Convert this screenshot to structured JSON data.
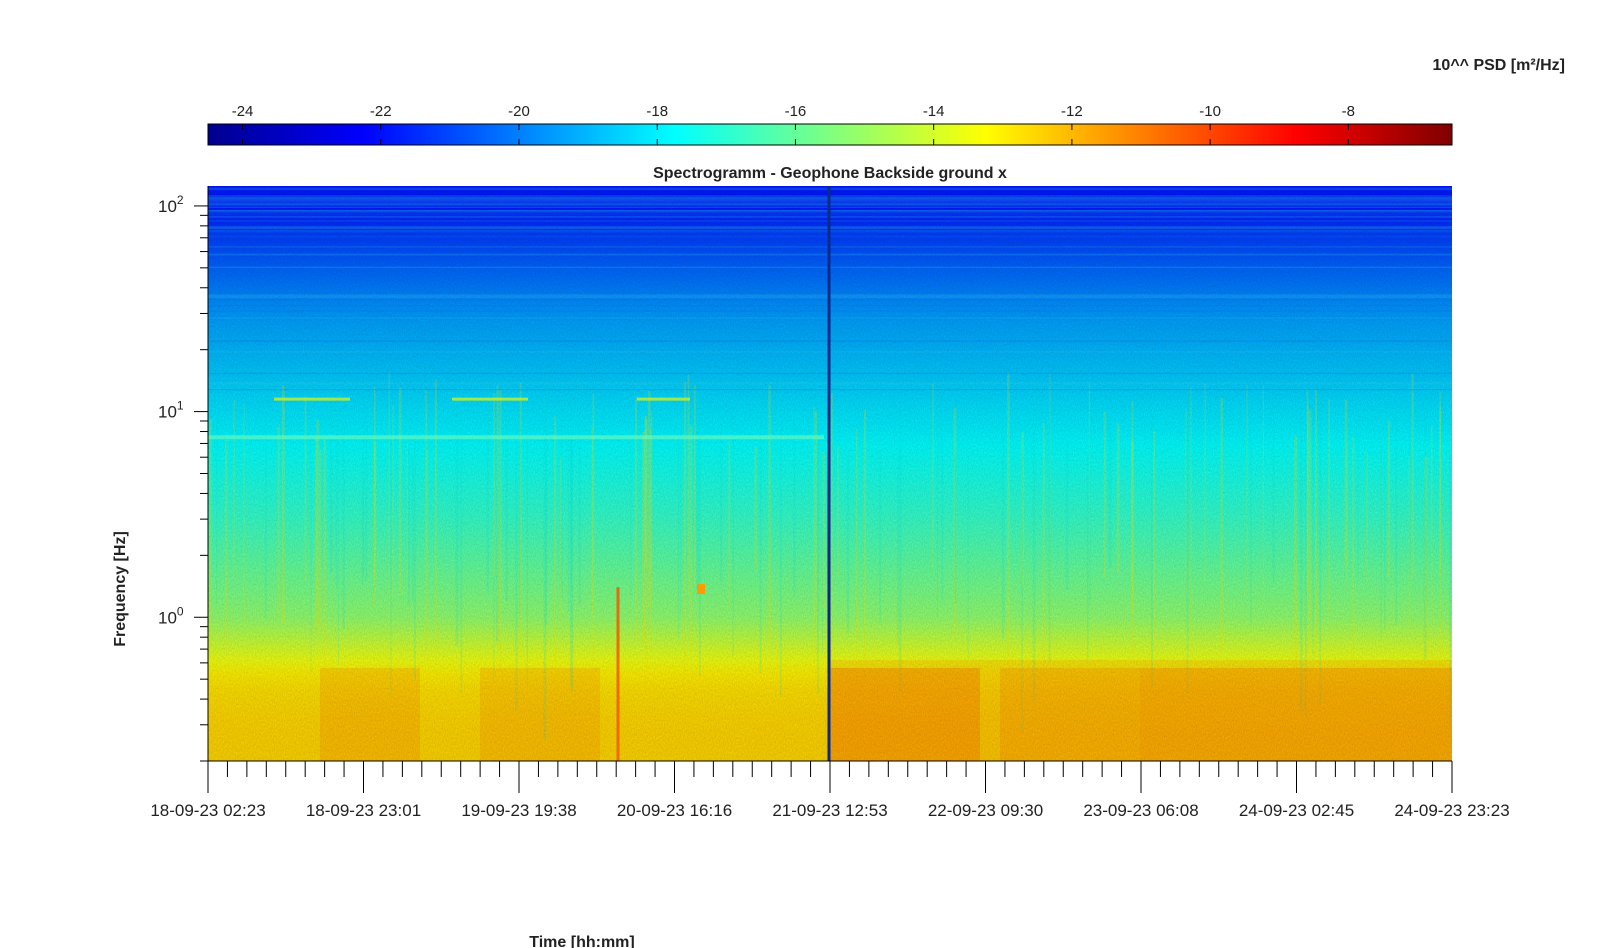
{
  "chart_data": {
    "type": "heatmap",
    "title": "Spectrogramm - Geophone Backside ground x",
    "xlabel": "Time [hh:mm]",
    "ylabel": "Frequency [Hz]",
    "yscale": "log",
    "ylim": [
      0.2,
      125
    ],
    "x_tick_labels": [
      "18-09-23 02:23",
      "18-09-23 23:01",
      "19-09-23 19:38",
      "20-09-23 16:16",
      "21-09-23 12:53",
      "22-09-23 09:30",
      "23-09-23 06:08",
      "24-09-23 02:45",
      "24-09-23 23:23"
    ],
    "y_tick_labels": [
      {
        "base": "10",
        "exp": "0",
        "value": 1
      },
      {
        "base": "10",
        "exp": "1",
        "value": 10
      },
      {
        "base": "10",
        "exp": "2",
        "value": 100
      }
    ],
    "colorbar": {
      "label": "10^^ PSD [m²/Hz]",
      "range": [
        -24.5,
        -6.5
      ],
      "ticks": [
        "-24",
        "-22",
        "-20",
        "-18",
        "-16",
        "-14",
        "-12",
        "-10",
        "-8"
      ],
      "tick_values": [
        -24,
        -22,
        -20,
        -18,
        -16,
        -14,
        -12,
        -10,
        -8
      ],
      "colormap": "jet"
    },
    "psd_profile_log10": [
      {
        "freq_hz": 100,
        "value": -21.8
      },
      {
        "freq_hz": 30,
        "value": -19.5
      },
      {
        "freq_hz": 10,
        "value": -18.2
      },
      {
        "freq_hz": 3,
        "value": -16.8
      },
      {
        "freq_hz": 1,
        "value": -15.2
      },
      {
        "freq_hz": 0.5,
        "value": -12.8
      },
      {
        "freq_hz": 0.3,
        "value": -12.5
      }
    ],
    "grid": false,
    "legend": "none"
  }
}
